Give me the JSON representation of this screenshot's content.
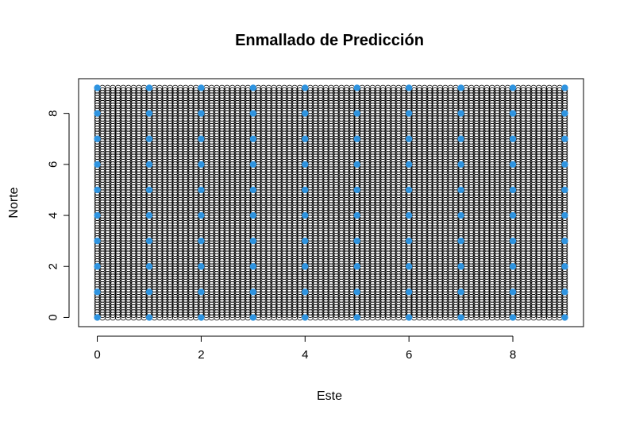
{
  "chart_data": {
    "type": "scatter",
    "title": "Enmallado de Predicción",
    "xlabel": "Este",
    "ylabel": "Norte",
    "xlim": [
      -0.36,
      9.36
    ],
    "ylim": [
      -0.36,
      9.36
    ],
    "x_ticks": [
      0,
      2,
      4,
      6,
      8
    ],
    "y_ticks": [
      0,
      2,
      4,
      6,
      8
    ],
    "grid": false,
    "series": [
      {
        "marker": "open-circle",
        "color": "#000000",
        "x_start": 0,
        "x_end": 9,
        "x_step": 0.1,
        "y_start": 0,
        "y_end": 9,
        "y_step": 0.1
      },
      {
        "marker": "filled-circle",
        "color": "#2f94e0",
        "x": [
          0,
          1,
          2,
          3,
          4,
          5,
          6,
          7,
          8,
          9
        ],
        "y": [
          0,
          1,
          2,
          3,
          4,
          5,
          6,
          7,
          8,
          9
        ]
      }
    ]
  }
}
